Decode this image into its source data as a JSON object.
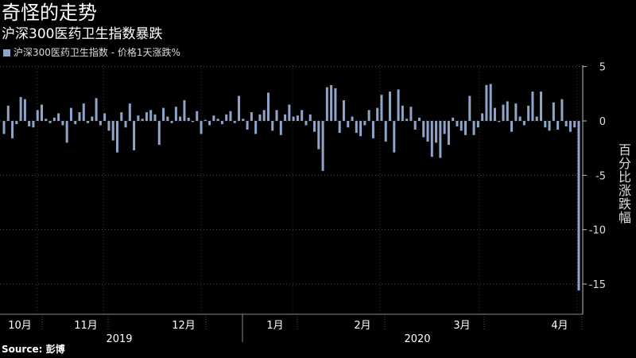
{
  "header": {
    "title": "奇怪的走势",
    "subtitle": "沪深300医药卫生指数暴跌"
  },
  "legend": {
    "label": "沪深300医药卫生指数 - 价格1天涨跌%"
  },
  "footer": {
    "source_label": "Source:",
    "source_value": "彭博"
  },
  "chart_data": {
    "type": "bar",
    "title": "沪深300医药卫生指数暴跌",
    "legend": [
      "沪深300医药卫生指数 - 价格1天涨跌%"
    ],
    "ylabel": "百分比涨跌幅",
    "ylim": [
      -17,
      5
    ],
    "yticks": [
      5,
      0,
      -5,
      -10,
      -15
    ],
    "bar_color": "#8EA4C8",
    "month_ticks": [
      "10月",
      "11月",
      "12月",
      "1月",
      "2月",
      "3月",
      "4月"
    ],
    "year_ticks": [
      "2019",
      "2020"
    ],
    "values": [
      -1.2,
      1.4,
      -1.6,
      -0.3,
      2.2,
      2.0,
      -0.5,
      -0.6,
      1.0,
      1.5,
      0.2,
      -0.2,
      0.3,
      0.7,
      -0.4,
      -2.0,
      1.2,
      -0.3,
      0.8,
      1.6,
      -0.2,
      0.4,
      2.1,
      -0.4,
      0.7,
      -0.9,
      -1.8,
      -2.9,
      0.8,
      -0.6,
      1.6,
      -2.7,
      0.5,
      0.2,
      0.8,
      1.0,
      0.6,
      -2.2,
      1.2,
      0.4,
      -0.2,
      1.3,
      0.4,
      1.9,
      0.3,
      -0.1,
      0.9,
      -1.2,
      0.1,
      -0.4,
      0.5,
      0.2,
      -0.3,
      0.6,
      0.9,
      -0.2,
      2.3,
      0.2,
      -0.8,
      0.8,
      -1.2,
      0.6,
      1.0,
      2.6,
      -0.9,
      1.0,
      -1.3,
      0.6,
      1.5,
      0.4,
      0.5,
      1.0,
      -0.4,
      0.6,
      -1.0,
      -2.6,
      -4.6,
      3.1,
      3.3,
      3.0,
      -1.1,
      1.9,
      -0.6,
      0.4,
      -1.1,
      -1.4,
      -0.4,
      1.0,
      -1.6,
      1.2,
      2.4,
      -1.9,
      2.7,
      -2.9,
      2.9,
      1.4,
      0.2,
      1.3,
      -0.8,
      0.3,
      -1.5,
      -1.9,
      -3.3,
      -2.0,
      -3.4,
      -1.2,
      -2.2,
      0.3,
      -0.5,
      -0.9,
      -1.3,
      2.3,
      -1.3,
      -0.6,
      0.7,
      3.3,
      3.4,
      1.2,
      -0.1,
      1.5,
      1.8,
      -1.0,
      1.6,
      0.4,
      -0.4,
      1.4,
      2.7,
      0.4,
      2.7,
      -0.6,
      -0.9,
      1.7,
      -0.8,
      2.0,
      -0.5,
      -1.0,
      -0.6,
      -15.6
    ]
  }
}
